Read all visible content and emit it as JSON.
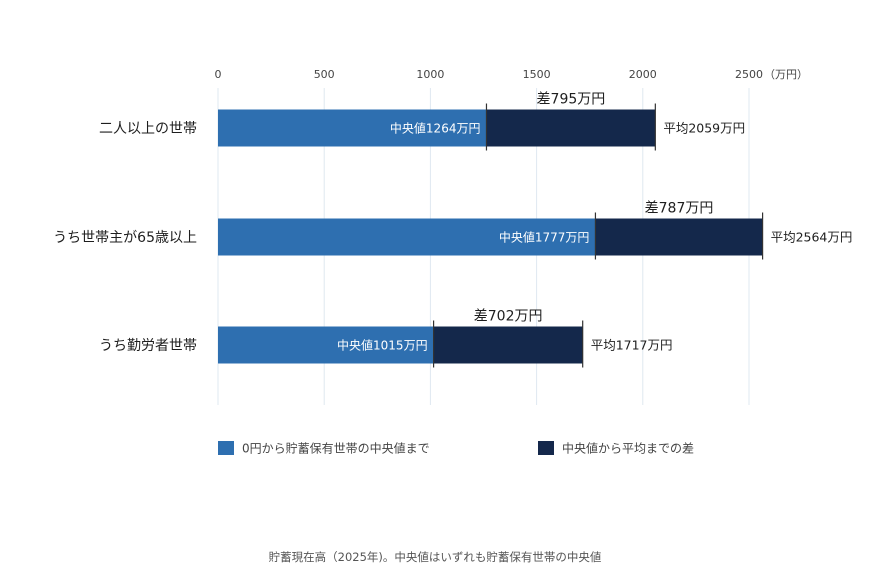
{
  "chart_data": {
    "type": "bar",
    "orientation": "horizontal",
    "stacked": true,
    "unit_label": "（万円）",
    "xlim": [
      0,
      2500
    ],
    "ticks": [
      0,
      500,
      1000,
      1500,
      2000,
      2500
    ],
    "grid": true,
    "categories": [
      "二人以上の世帯",
      "うち世帯主が65歳以上",
      "うち勤労者世帯"
    ],
    "series": [
      {
        "name": "0円から貯蓄保有世帯の中央値まで",
        "color": "#2e6fb0",
        "values": [
          1264,
          1777,
          1015
        ]
      },
      {
        "name": "中央値から平均までの差",
        "color": "#14284b",
        "values": [
          795,
          787,
          702
        ]
      }
    ],
    "median_labels": [
      "中央値1264万円",
      "中央値1777万円",
      "中央値1015万円"
    ],
    "average_labels": [
      "平均2059万円",
      "平均2564万円",
      "平均1717万円"
    ],
    "difference_labels": [
      "差795万円",
      "差787万円",
      "差702万円"
    ],
    "legend_position": "bottom",
    "caption": "貯蓄現在高（2025年)。中央値はいずれも貯蓄保有世帯の中央値"
  }
}
